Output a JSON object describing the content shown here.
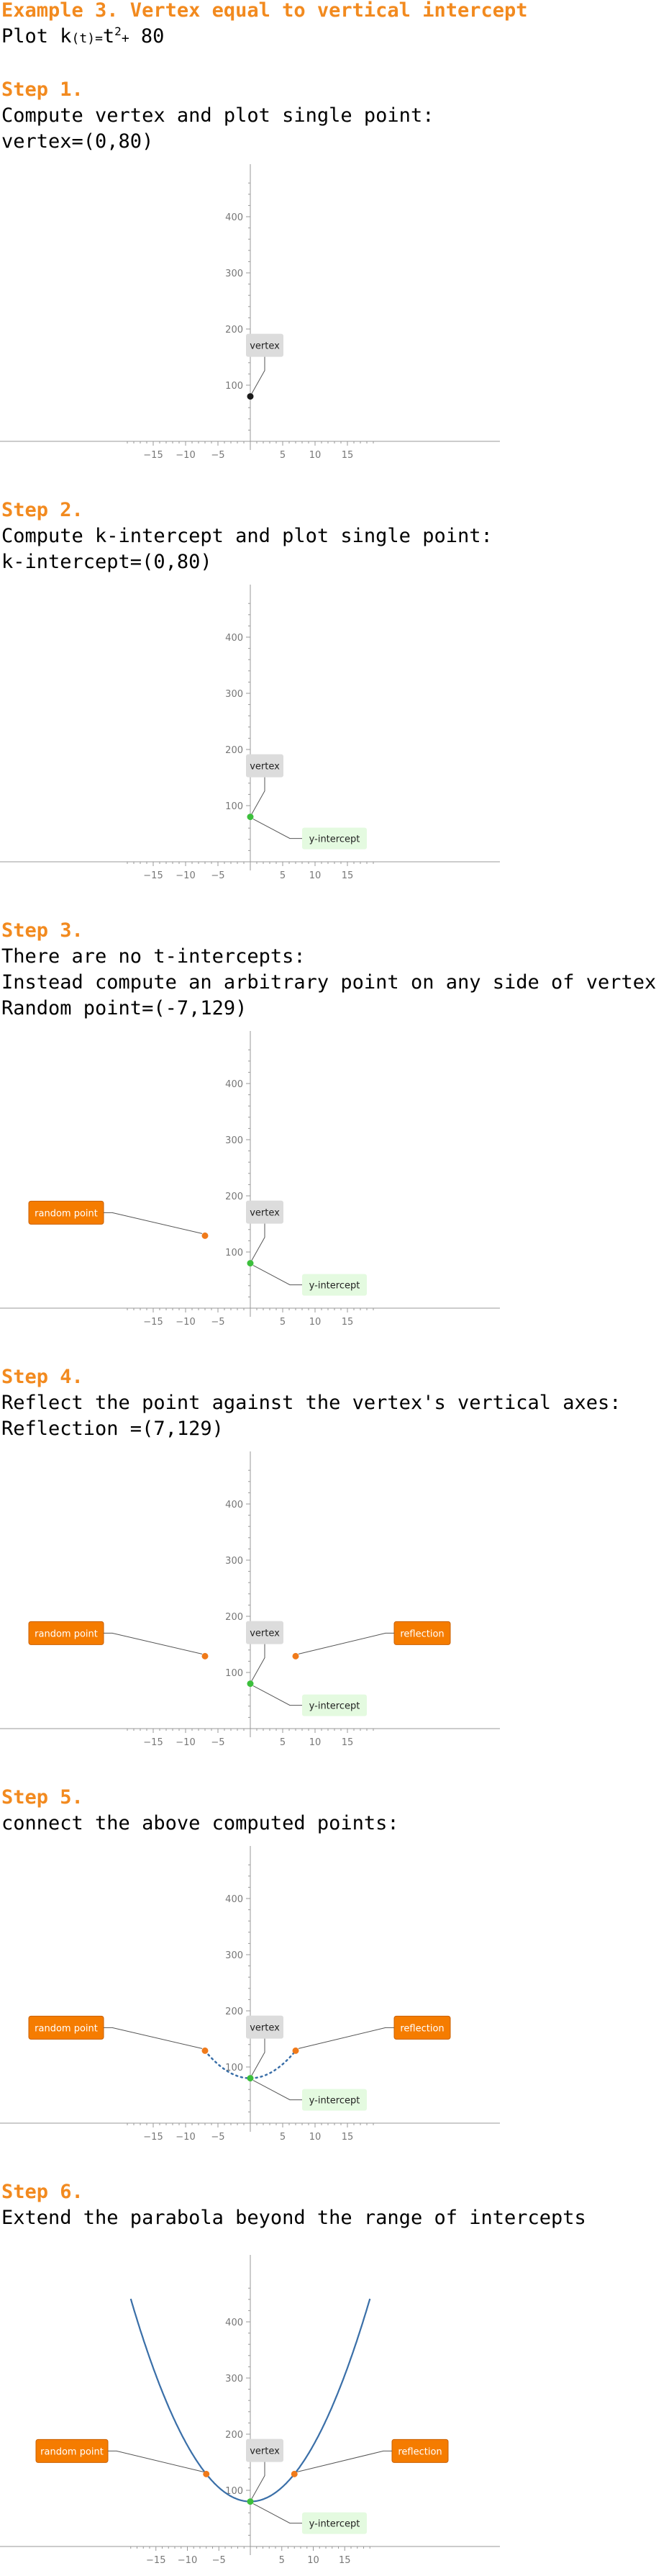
{
  "title": "Example 3. Vertex equal to vertical intercept",
  "intro": {
    "prefix": "Plot k",
    "mid": "(t)",
    "eq": "=",
    "rest": "t",
    "exp": "2",
    "op": "+",
    "tail": " 80"
  },
  "steps": [
    {
      "heading": "Step 1.",
      "lines": [
        "Compute vertex and plot single point:",
        "vertex=(0,80)"
      ]
    },
    {
      "heading": "Step 2.",
      "lines": [
        "Compute k-intercept and plot single point:",
        "k-intercept=(0,80)"
      ]
    },
    {
      "heading": "Step 3.",
      "lines": [
        "There are no t-intercepts:",
        "Instead compute an arbitrary point on any side of vertex:",
        "Random point=(-7,129)"
      ]
    },
    {
      "heading": "Step 4.",
      "lines": [
        "Reflect the point against the vertex's vertical axes:",
        "Reflection =(7,129)"
      ]
    },
    {
      "heading": "Step 5.",
      "lines": [
        "connect the above computed points:"
      ]
    },
    {
      "heading": "Step 6.",
      "lines": [
        "Extend the parabola beyond the range of intercepts"
      ]
    }
  ],
  "labels": {
    "vertex": "vertex",
    "y_intercept": "y-intercept",
    "random_point": "random point",
    "reflection": "reflection"
  },
  "colors": {
    "accent": "#f28a1f",
    "vertex_point": "#1a1a1a",
    "intercept_point": "#3cbf3c",
    "random_point": "#f07a1a",
    "curve": "#3a6fa8",
    "vertex_label_bg": "#dcdcdc",
    "intercept_label_bg": "#e4fae0",
    "orange_label_bg": "#f57c00"
  },
  "chart_data": [
    {
      "type": "scatter",
      "function": "k(t)=t^2+80",
      "xlim": [
        -19,
        19
      ],
      "ylim": [
        -5,
        470
      ],
      "xticks": [
        -15,
        -10,
        -5,
        5,
        10,
        15
      ],
      "yticks": [
        100,
        200,
        300,
        400
      ],
      "points": [
        {
          "name": "vertex",
          "x": 0,
          "y": 80
        }
      ]
    },
    {
      "type": "scatter",
      "function": "k(t)=t^2+80",
      "xlim": [
        -19,
        19
      ],
      "ylim": [
        -5,
        470
      ],
      "xticks": [
        -15,
        -10,
        -5,
        5,
        10,
        15
      ],
      "yticks": [
        100,
        200,
        300,
        400
      ],
      "points": [
        {
          "name": "vertex",
          "x": 0,
          "y": 80
        },
        {
          "name": "y-intercept",
          "x": 0,
          "y": 80
        }
      ]
    },
    {
      "type": "scatter",
      "function": "k(t)=t^2+80",
      "xlim": [
        -19,
        19
      ],
      "ylim": [
        -5,
        470
      ],
      "xticks": [
        -15,
        -10,
        -5,
        5,
        10,
        15
      ],
      "yticks": [
        100,
        200,
        300,
        400
      ],
      "points": [
        {
          "name": "vertex",
          "x": 0,
          "y": 80
        },
        {
          "name": "y-intercept",
          "x": 0,
          "y": 80
        },
        {
          "name": "random point",
          "x": -7,
          "y": 129
        }
      ]
    },
    {
      "type": "scatter",
      "function": "k(t)=t^2+80",
      "xlim": [
        -19,
        19
      ],
      "ylim": [
        -5,
        470
      ],
      "xticks": [
        -15,
        -10,
        -5,
        5,
        10,
        15
      ],
      "yticks": [
        100,
        200,
        300,
        400
      ],
      "points": [
        {
          "name": "vertex",
          "x": 0,
          "y": 80
        },
        {
          "name": "y-intercept",
          "x": 0,
          "y": 80
        },
        {
          "name": "random point",
          "x": -7,
          "y": 129
        },
        {
          "name": "reflection",
          "x": 7,
          "y": 129
        }
      ]
    },
    {
      "type": "line",
      "function": "k(t)=t^2+80",
      "xlim": [
        -19,
        19
      ],
      "ylim": [
        -5,
        470
      ],
      "curve_range": [
        -7,
        7
      ],
      "dashed": true,
      "xticks": [
        -15,
        -10,
        -5,
        5,
        10,
        15
      ],
      "yticks": [
        100,
        200,
        300,
        400
      ],
      "points": [
        {
          "name": "vertex",
          "x": 0,
          "y": 80
        },
        {
          "name": "y-intercept",
          "x": 0,
          "y": 80
        },
        {
          "name": "random point",
          "x": -7,
          "y": 129
        },
        {
          "name": "reflection",
          "x": 7,
          "y": 129
        }
      ]
    },
    {
      "type": "line",
      "function": "k(t)=t^2+80",
      "xlim": [
        -19.5,
        19.5
      ],
      "ylim": [
        -5,
        470
      ],
      "curve_range": [
        -19,
        19
      ],
      "dashed": false,
      "xticks": [
        -15,
        -10,
        -5,
        5,
        10,
        15
      ],
      "yticks": [
        100,
        200,
        300,
        400
      ],
      "points": [
        {
          "name": "vertex",
          "x": 0,
          "y": 80
        },
        {
          "name": "y-intercept",
          "x": 0,
          "y": 80
        },
        {
          "name": "random point",
          "x": -7,
          "y": 129
        },
        {
          "name": "reflection",
          "x": 7,
          "y": 129
        }
      ]
    }
  ]
}
